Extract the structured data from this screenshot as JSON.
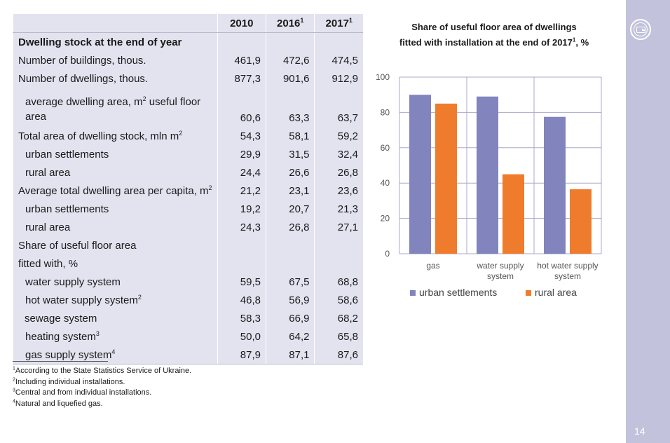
{
  "page_number": "14",
  "table": {
    "columns": [
      "2010",
      "2016",
      "2017"
    ],
    "column_notes": [
      "",
      "1",
      "1"
    ],
    "rows": [
      {
        "label": "Dwelling stock at the end of year",
        "sup": "",
        "values": [
          "",
          "",
          ""
        ]
      },
      {
        "label": "Number of buildings, thous.",
        "sup": "",
        "values": [
          "461,9",
          "472,6",
          "474,5"
        ]
      },
      {
        "label": "Number of dwellings, thous.",
        "sup": "",
        "values": [
          "877,3",
          "901,6",
          "912,9"
        ]
      },
      {
        "label_a": "average dwelling area, m",
        "label_sup": "2",
        "label_b": " useful floor area",
        "values": [
          "60,6",
          "63,3",
          "63,7"
        ]
      },
      {
        "label": "Total area of dwelling stock, mln m",
        "sup": "2",
        "values": [
          "54,3",
          "58,1",
          "59,2"
        ]
      },
      {
        "label": "urban settlements",
        "sup": "",
        "values": [
          "29,9",
          "31,5",
          "32,4"
        ]
      },
      {
        "label": "rural area",
        "sup": "",
        "values": [
          "24,4",
          "26,6",
          "26,8"
        ]
      },
      {
        "label": "Average total dwelling area per capita, m",
        "sup": "2",
        "values": [
          "21,2",
          "23,1",
          "23,6"
        ]
      },
      {
        "label": "urban settlements",
        "sup": "",
        "values": [
          "19,2",
          "20,7",
          "21,3"
        ]
      },
      {
        "label": "rural area",
        "sup": "",
        "values": [
          "24,3",
          "26,8",
          "27,1"
        ]
      },
      {
        "label": "Share of useful floor area",
        "sup": "",
        "values": [
          "",
          "",
          ""
        ]
      },
      {
        "label": "fitted with, %",
        "sup": "",
        "values": [
          "",
          "",
          ""
        ]
      },
      {
        "label": "water supply system",
        "sup": "",
        "values": [
          "59,5",
          "67,5",
          "68,8"
        ]
      },
      {
        "label": "hot water supply system",
        "sup": "2",
        "values": [
          "46,8",
          "56,9",
          "58,6"
        ]
      },
      {
        "label": "sewage system",
        "sup": "",
        "values": [
          "58,3",
          "66,9",
          "68,2"
        ]
      },
      {
        "label": "heating system",
        "sup": "3",
        "values": [
          "50,0",
          "64,2",
          "65,8"
        ]
      },
      {
        "label": "gas supply system",
        "sup": "4",
        "values": [
          "87,9",
          "87,1",
          "87,6"
        ]
      }
    ]
  },
  "footnotes": [
    {
      "mark": "1",
      "text": "According to the State Statistics Service of Ukraine."
    },
    {
      "mark": "2",
      "text": "Including individual installations."
    },
    {
      "mark": "3",
      "text": "Central and from individual installations."
    },
    {
      "mark": "4",
      "text": "Natural and liquefied gas."
    }
  ],
  "chart_data": {
    "type": "bar",
    "title_line1": "Share of useful floor area of dwellings",
    "title_line2": "fitted with installation at the end of 2017",
    "title_sup": "1",
    "title_suffix": ", %",
    "categories": [
      [
        "gas"
      ],
      [
        "water supply",
        "system"
      ],
      [
        "hot water supply",
        "system"
      ]
    ],
    "series": [
      {
        "name": "urban settlements",
        "color": "#8284bd",
        "values": [
          90,
          89,
          77.5
        ]
      },
      {
        "name": "rural area",
        "color": "#ef7c2c",
        "values": [
          85,
          45,
          36.5
        ]
      }
    ],
    "ylim": [
      0,
      100
    ],
    "yticks": [
      0,
      20,
      40,
      60,
      80,
      100
    ],
    "grid": true,
    "legend_position": "bottom"
  }
}
